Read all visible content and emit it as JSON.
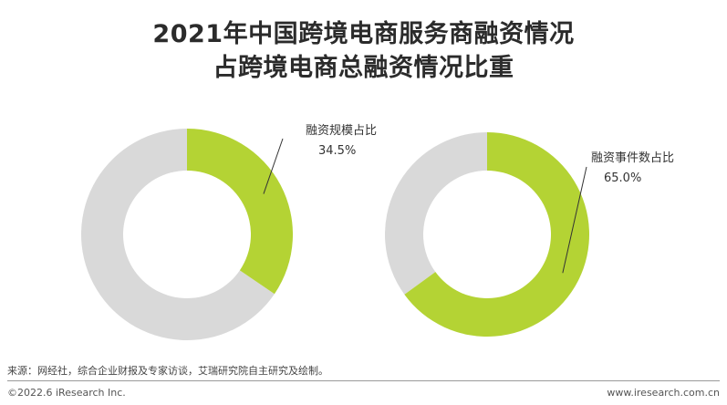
{
  "title_line1": "2021年中国跨境电商服务商融资情况",
  "title_line2": "占跨境电商总融资情况比重",
  "colors": {
    "accent": "#b4d334",
    "remainder": "#d9d9d9",
    "leader": "#333333"
  },
  "chart_data": [
    {
      "type": "pie",
      "style": "donut",
      "label": "融资规模占比",
      "value": 34.5,
      "value_label": "34.5%",
      "start": "12 o'clock",
      "direction": "clockwise"
    },
    {
      "type": "pie",
      "style": "donut",
      "label": "融资事件数占比",
      "value": 65.0,
      "value_label": "65.0%",
      "start": "12 o'clock",
      "direction": "clockwise"
    }
  ],
  "footer": {
    "source": "来源：网经社，综合企业财报及专家访谈，艾瑞研究院自主研究及绘制。",
    "copyright": "©2022.6 iResearch Inc.",
    "website": "www.iresearch.com.cn"
  }
}
